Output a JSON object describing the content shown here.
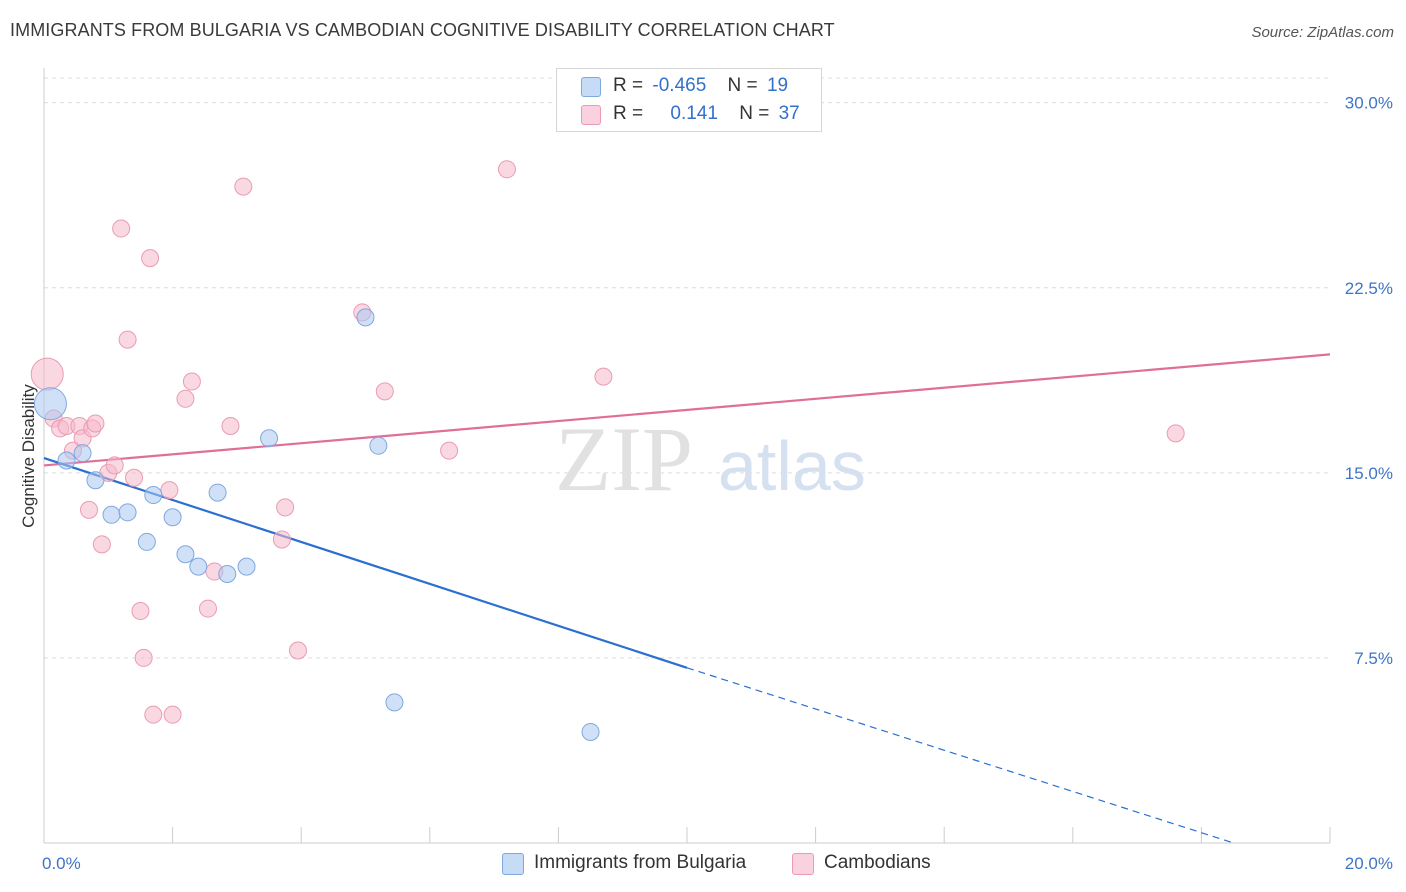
{
  "header": {
    "title": "IMMIGRANTS FROM BULGARIA VS CAMBODIAN COGNITIVE DISABILITY CORRELATION CHART",
    "source": "Source: ZipAtlas.com"
  },
  "watermark": {
    "zip": "ZIP",
    "atlas": "atlas"
  },
  "legend": {
    "rows": [
      {
        "r_label": "R =",
        "r_value": "-0.465",
        "n_label": "N =",
        "n_value": "19",
        "color": "#aac8f0"
      },
      {
        "r_label": "R =",
        "r_value": "0.141",
        "n_label": "N =",
        "n_value": "37",
        "color": "#f5b8cb"
      }
    ]
  },
  "chart_data": {
    "type": "scatter",
    "xlabel": "",
    "ylabel": "Cognitive Disability",
    "xlim": [
      0,
      20
    ],
    "ylim": [
      0,
      31
    ],
    "x_tick_labels": [
      "0.0%",
      "20.0%"
    ],
    "y_ticks": [
      7.5,
      15.0,
      22.5,
      30.0
    ],
    "y_tick_labels": [
      "7.5%",
      "15.0%",
      "22.5%",
      "30.0%"
    ],
    "grid": true,
    "legend_position": "bottom",
    "series": [
      {
        "name": "Immigrants from Bulgaria",
        "color": "#aac8f0",
        "stroke": "#7fa8de",
        "line_color": "#2b6fd1",
        "points": [
          {
            "x": 0.1,
            "y": 17.8,
            "big": true
          },
          {
            "x": 0.35,
            "y": 15.5
          },
          {
            "x": 0.6,
            "y": 15.8
          },
          {
            "x": 0.8,
            "y": 14.7
          },
          {
            "x": 1.05,
            "y": 13.3
          },
          {
            "x": 1.3,
            "y": 13.4
          },
          {
            "x": 1.6,
            "y": 12.2
          },
          {
            "x": 1.7,
            "y": 14.1
          },
          {
            "x": 2.0,
            "y": 13.2
          },
          {
            "x": 2.2,
            "y": 11.7
          },
          {
            "x": 2.4,
            "y": 11.2
          },
          {
            "x": 2.7,
            "y": 14.2
          },
          {
            "x": 2.85,
            "y": 10.9
          },
          {
            "x": 3.15,
            "y": 11.2
          },
          {
            "x": 3.5,
            "y": 16.4
          },
          {
            "x": 5.0,
            "y": 21.3
          },
          {
            "x": 5.2,
            "y": 16.1
          },
          {
            "x": 5.45,
            "y": 5.7
          },
          {
            "x": 8.5,
            "y": 4.5
          }
        ],
        "trend": {
          "x0": 0.0,
          "y0": 15.6,
          "x1": 10.0,
          "y1": 7.1,
          "dash_to_x": 18.5,
          "dash_to_y": 0.0
        }
      },
      {
        "name": "Cambodians",
        "color": "#f5b8cb",
        "stroke": "#ea9bb3",
        "line_color": "#e06f96",
        "points": [
          {
            "x": 0.05,
            "y": 19.0,
            "big": true
          },
          {
            "x": 0.15,
            "y": 17.2
          },
          {
            "x": 0.25,
            "y": 16.8
          },
          {
            "x": 0.35,
            "y": 16.9
          },
          {
            "x": 0.45,
            "y": 15.9
          },
          {
            "x": 0.55,
            "y": 16.9
          },
          {
            "x": 0.6,
            "y": 16.4
          },
          {
            "x": 0.7,
            "y": 13.5
          },
          {
            "x": 0.75,
            "y": 16.8
          },
          {
            "x": 0.8,
            "y": 17.0
          },
          {
            "x": 0.9,
            "y": 12.1
          },
          {
            "x": 1.0,
            "y": 15.0
          },
          {
            "x": 1.1,
            "y": 15.3
          },
          {
            "x": 1.2,
            "y": 24.9
          },
          {
            "x": 1.3,
            "y": 20.4
          },
          {
            "x": 1.4,
            "y": 14.8
          },
          {
            "x": 1.5,
            "y": 9.4
          },
          {
            "x": 1.55,
            "y": 7.5
          },
          {
            "x": 1.65,
            "y": 23.7
          },
          {
            "x": 1.7,
            "y": 5.2
          },
          {
            "x": 1.95,
            "y": 14.3
          },
          {
            "x": 2.0,
            "y": 5.2
          },
          {
            "x": 2.2,
            "y": 18.0
          },
          {
            "x": 2.3,
            "y": 18.7
          },
          {
            "x": 2.55,
            "y": 9.5
          },
          {
            "x": 2.65,
            "y": 11.0
          },
          {
            "x": 2.9,
            "y": 16.9
          },
          {
            "x": 3.1,
            "y": 26.6
          },
          {
            "x": 3.7,
            "y": 12.3
          },
          {
            "x": 3.75,
            "y": 13.6
          },
          {
            "x": 3.95,
            "y": 7.8
          },
          {
            "x": 4.95,
            "y": 21.5
          },
          {
            "x": 5.3,
            "y": 18.3
          },
          {
            "x": 6.3,
            "y": 15.9
          },
          {
            "x": 7.2,
            "y": 27.3
          },
          {
            "x": 8.7,
            "y": 18.9
          },
          {
            "x": 17.6,
            "y": 16.6
          }
        ],
        "trend": {
          "x0": 0.0,
          "y0": 15.3,
          "x1": 20.0,
          "y1": 19.8
        }
      }
    ]
  }
}
